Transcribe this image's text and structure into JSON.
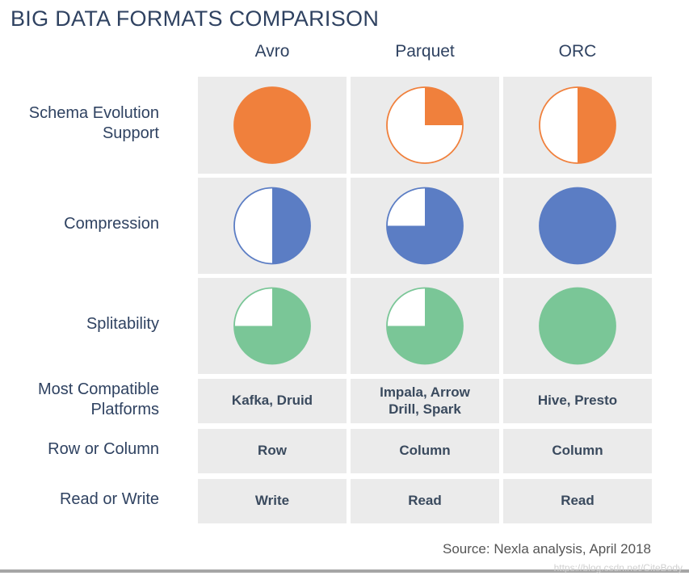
{
  "title": "BIG DATA FORMATS COMPARISON",
  "columns": [
    "Avro",
    "Parquet",
    "ORC"
  ],
  "rows": [
    {
      "label": [
        "Schema Evolution",
        "Support"
      ],
      "kind": "pie",
      "color": "#f0803c",
      "values": [
        1.0,
        0.25,
        0.5
      ]
    },
    {
      "label": [
        "Compression"
      ],
      "kind": "pie",
      "color": "#5b7dc4",
      "values": [
        0.5,
        0.75,
        1.0
      ]
    },
    {
      "label": [
        "Splitability"
      ],
      "kind": "pie",
      "color": "#7ac697",
      "values": [
        0.75,
        0.75,
        1.0
      ]
    },
    {
      "label": [
        "Most Compatible",
        "Platforms"
      ],
      "kind": "text",
      "values": [
        [
          "Kafka, Druid"
        ],
        [
          "Impala, Arrow",
          "Drill, Spark"
        ],
        [
          "Hive, Presto"
        ]
      ]
    },
    {
      "label": [
        "Row or Column"
      ],
      "kind": "text",
      "values": [
        [
          "Row"
        ],
        [
          "Column"
        ],
        [
          "Column"
        ]
      ]
    },
    {
      "label": [
        "Read or Write"
      ],
      "kind": "text",
      "values": [
        [
          "Write"
        ],
        [
          "Read"
        ],
        [
          "Read"
        ]
      ]
    }
  ],
  "source": "Source: Nexla analysis, April 2018",
  "watermark": "https://blog.csdn.net/CiteBody"
}
